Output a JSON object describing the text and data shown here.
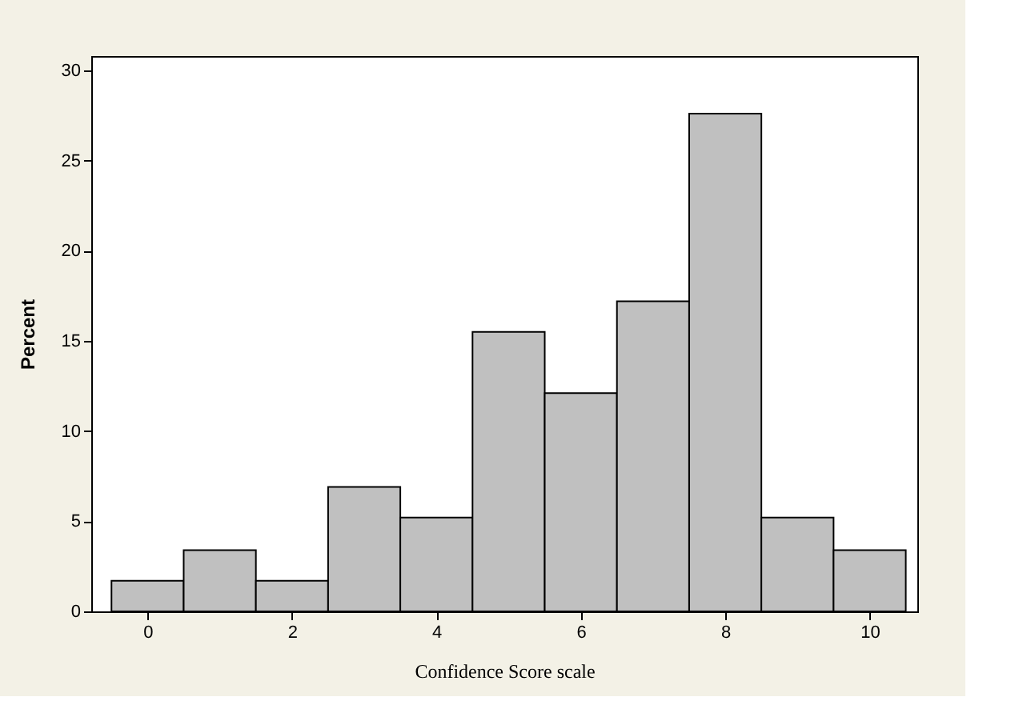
{
  "chart_data": {
    "type": "histogram",
    "xlabel": "Confidence Score scale",
    "ylabel": "Percent",
    "bins": [
      -0.5,
      0.5,
      1.5,
      2.5,
      3.5,
      4.5,
      5.5,
      6.5,
      7.5,
      8.5,
      9.5,
      10.5
    ],
    "values": [
      1.7,
      3.4,
      1.7,
      6.9,
      5.2,
      15.5,
      12.1,
      17.2,
      27.6,
      5.2,
      3.4
    ],
    "color": "#c0c0c0",
    "xlim": [
      -0.78,
      10.66
    ],
    "xticks": [
      0,
      2,
      4,
      6,
      8,
      10
    ],
    "ylim": [
      0,
      30.8
    ],
    "yticks": [
      0,
      5,
      10,
      15,
      20,
      25,
      30
    ],
    "grid": false
  }
}
